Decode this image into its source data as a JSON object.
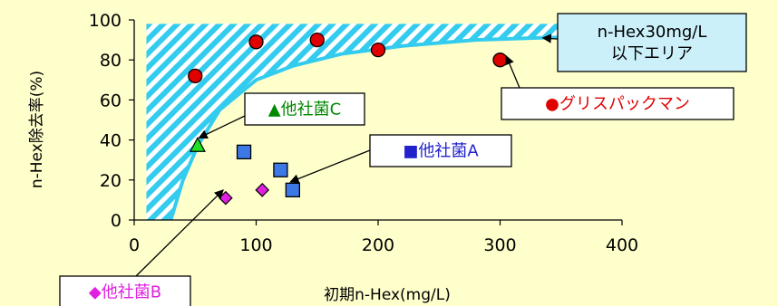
{
  "chart_data": {
    "type": "scatter",
    "xlabel": "初期n-Hex(mg/L)",
    "ylabel": "n-Hex除去率(%)",
    "xlim": [
      0,
      400
    ],
    "ylim": [
      0,
      100
    ],
    "x_ticks": [
      "0",
      "100",
      "200",
      "300",
      "400"
    ],
    "y_ticks": [
      "0",
      "20",
      "40",
      "60",
      "80",
      "100"
    ],
    "grid": false,
    "series": [
      {
        "name": "●グリスパックマン",
        "marker": "circle",
        "color": "#E00000",
        "points": [
          [
            50,
            72
          ],
          [
            100,
            89
          ],
          [
            150,
            90
          ],
          [
            200,
            85
          ],
          [
            300,
            80
          ]
        ]
      },
      {
        "name": "■他社菌A",
        "marker": "square",
        "color": "#3C78E6",
        "points": [
          [
            90,
            34
          ],
          [
            120,
            25
          ],
          [
            130,
            15
          ]
        ]
      },
      {
        "name": "◆他社菌B",
        "marker": "diamond",
        "color": "#E020E0",
        "points": [
          [
            75,
            11
          ],
          [
            105,
            15
          ]
        ]
      },
      {
        "name": "▲他社菌C",
        "marker": "triangle",
        "color": "#22DD22",
        "points": [
          [
            52,
            37
          ]
        ]
      }
    ],
    "area": {
      "label": "n-Hex30mg/L\n以下エリア",
      "color": "#33CCEE",
      "boundary_curve": [
        [
          30,
          0
        ],
        [
          40,
          20
        ],
        [
          52,
          37
        ],
        [
          70,
          55
        ],
        [
          100,
          70
        ],
        [
          130,
          77
        ],
        [
          170,
          83
        ],
        [
          220,
          87
        ],
        [
          280,
          90
        ],
        [
          330,
          91
        ],
        [
          400,
          92
        ]
      ]
    },
    "callouts": [
      {
        "text": "n-Hex30mg/L\n以下エリア",
        "bg": "#CCF0FA",
        "border": "#000000",
        "color": "#000000",
        "target": [
          335,
          91
        ]
      },
      {
        "text": "●グリスパックマン",
        "bg": "#FFFFFF",
        "border": "#000000",
        "color": "#E00000",
        "target": [
          305,
          82
        ]
      },
      {
        "text": "■他社菌A",
        "bg": "#FFFFFF",
        "border": "#000000",
        "color": "#2222CC",
        "target": [
          128,
          19
        ]
      },
      {
        "text": "◆他社菌B",
        "bg": "#FFFFFF",
        "border": "#000000",
        "color": "#E020E0",
        "target": [
          73,
          15
        ]
      },
      {
        "text": "▲他社菌C",
        "bg": "#FFFFFF",
        "border": "#000000",
        "color": "#008800",
        "target": [
          53,
          41
        ]
      }
    ]
  }
}
